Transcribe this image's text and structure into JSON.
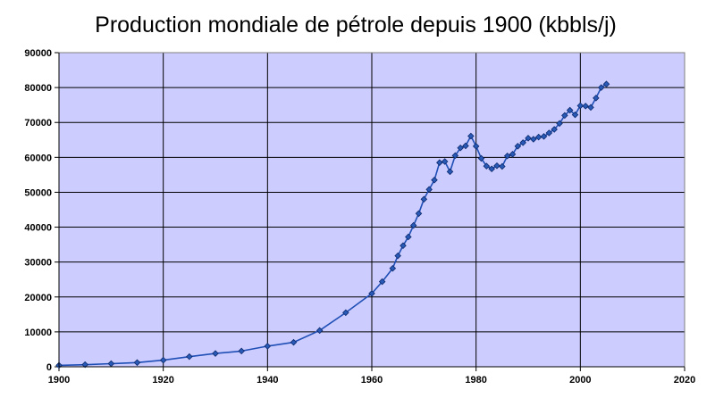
{
  "chart_data": {
    "type": "line",
    "title": "Production mondiale de pétrole depuis 1900 (kbbls/j)",
    "xlabel": "",
    "ylabel": "",
    "xlim": [
      1900,
      2020
    ],
    "ylim": [
      0,
      90000
    ],
    "x_ticks": [
      1900,
      1920,
      1940,
      1960,
      1980,
      2000,
      2020
    ],
    "y_ticks": [
      0,
      10000,
      20000,
      30000,
      40000,
      50000,
      60000,
      70000,
      80000,
      90000
    ],
    "grid": true,
    "legend": "none",
    "colors": {
      "plot_background": "#ccccff",
      "line": "#1f4fb5",
      "marker": "#2a5ab8",
      "marker_edge": "#0c2a6b",
      "grid": "#000000"
    },
    "series": [
      {
        "x": [
          1900,
          1905,
          1910,
          1915,
          1920,
          1925,
          1930,
          1935,
          1940,
          1945,
          1950,
          1955,
          1960,
          1962,
          1964,
          1965,
          1966,
          1967,
          1968,
          1969,
          1970,
          1971,
          1972,
          1973,
          1974,
          1975,
          1976,
          1977,
          1978,
          1979,
          1980,
          1981,
          1982,
          1983,
          1984,
          1985,
          1986,
          1987,
          1988,
          1989,
          1990,
          1991,
          1992,
          1993,
          1994,
          1995,
          1996,
          1997,
          1998,
          1999,
          2000,
          2001,
          2002,
          2003,
          2004,
          2005
        ],
        "y": [
          400,
          600,
          900,
          1200,
          1900,
          2900,
          3800,
          4500,
          5900,
          7000,
          10400,
          15500,
          21000,
          24400,
          28200,
          31800,
          34700,
          37200,
          40500,
          43900,
          48000,
          50800,
          53500,
          58500,
          58800,
          55900,
          60500,
          62700,
          63300,
          66100,
          63200,
          59700,
          57500,
          56700,
          57600,
          57400,
          60400,
          60900,
          63200,
          64200,
          65500,
          65200,
          65800,
          66000,
          67000,
          68000,
          69700,
          72000,
          73500,
          72200,
          74800,
          74700,
          74300,
          77000,
          80000,
          81000
        ]
      }
    ]
  }
}
